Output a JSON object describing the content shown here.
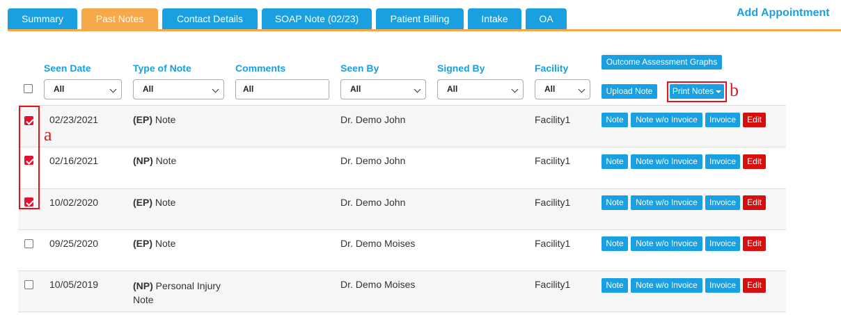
{
  "tabs": [
    {
      "label": "Summary",
      "active": false
    },
    {
      "label": "Past Notes",
      "active": true
    },
    {
      "label": "Contact Details",
      "active": false
    },
    {
      "label": "SOAP Note (02/23)",
      "active": false
    },
    {
      "label": "Patient Billing",
      "active": false
    },
    {
      "label": "Intake",
      "active": false
    },
    {
      "label": "OA",
      "active": false
    }
  ],
  "add_appointment": "Add Appointment",
  "columns": {
    "seen_date": "Seen Date",
    "type_of_note": "Type of Note",
    "comments": "Comments",
    "seen_by": "Seen By",
    "signed_by": "Signed By",
    "facility": "Facility"
  },
  "filters": {
    "seen_date": "All",
    "type_of_note": "All",
    "comments": "All",
    "seen_by": "All",
    "signed_by": "All",
    "facility": "All"
  },
  "toolbar": {
    "outcome_graphs": "Outcome Assessment Graphs",
    "upload_note": "Upload Note",
    "print_notes": "Print Notes"
  },
  "row_actions": {
    "note": "Note",
    "note_wo_invoice": "Note w/o Invoice",
    "invoice": "Invoice",
    "edit": "Edit"
  },
  "annotations": {
    "a": "a",
    "b": "b"
  },
  "rows": [
    {
      "checked": true,
      "date": "02/23/2021",
      "code": "(EP)",
      "type": "Note",
      "type_line2": "",
      "seen_by": "Dr. Demo John",
      "facility": "Facility1"
    },
    {
      "checked": true,
      "date": "02/16/2021",
      "code": "(NP)",
      "type": "Note",
      "type_line2": "",
      "seen_by": "Dr. Demo John",
      "facility": "Facility1"
    },
    {
      "checked": true,
      "date": "10/02/2020",
      "code": "(EP)",
      "type": "Note",
      "type_line2": "",
      "seen_by": "Dr. Demo John",
      "facility": "Facility1"
    },
    {
      "checked": false,
      "date": "09/25/2020",
      "code": "(EP)",
      "type": "Note",
      "type_line2": "",
      "seen_by": "Dr. Demo Moises",
      "facility": "Facility1"
    },
    {
      "checked": false,
      "date": "10/05/2019",
      "code": "(NP)",
      "type": "Personal Injury",
      "type_line2": "Note",
      "seen_by": "Dr. Demo Moises",
      "facility": "Facility1"
    }
  ]
}
